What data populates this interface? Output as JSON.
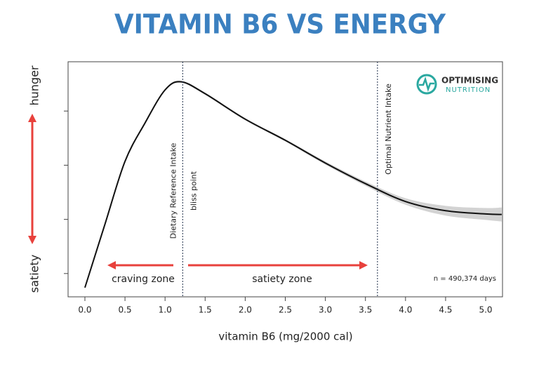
{
  "chart_data": {
    "type": "line",
    "title": "VITAMIN B6 VS ENERGY",
    "x_label": "vitamin B6 (mg/2000 cal)",
    "y_labels": {
      "top": "hunger",
      "bottom": "satiety"
    },
    "x": [
      0,
      0.25,
      0.5,
      0.75,
      1.0,
      1.2,
      1.5,
      2.0,
      2.5,
      3.0,
      3.5,
      4.0,
      4.5,
      5.0,
      5.2
    ],
    "values": [
      0.74,
      1.91,
      3.07,
      3.78,
      4.39,
      4.54,
      4.32,
      3.85,
      3.46,
      3.04,
      2.66,
      2.33,
      2.16,
      2.1,
      2.09
    ],
    "band": {
      "lower": [
        0.72,
        1.89,
        3.05,
        3.76,
        4.37,
        4.52,
        4.3,
        3.83,
        3.44,
        3.01,
        2.62,
        2.27,
        2.07,
        1.99,
        1.96
      ],
      "upper": [
        0.76,
        1.93,
        3.09,
        3.8,
        4.41,
        4.56,
        4.34,
        3.87,
        3.48,
        3.07,
        2.7,
        2.39,
        2.25,
        2.21,
        2.22
      ],
      "color": "#d3d3d3"
    },
    "color": "#111111",
    "xlim": [
      -0.21,
      5.21
    ],
    "ylim": [
      0.57,
      4.91
    ],
    "xticks": [
      {
        "value": 0,
        "label": "0.0"
      },
      0.5,
      {
        "value": 1,
        "label": "1.0"
      },
      1.5,
      {
        "value": 2,
        "label": "2.0"
      },
      2.5,
      {
        "value": 3,
        "label": "3.0"
      },
      3.5,
      {
        "value": 4,
        "label": "4.0"
      },
      4.5,
      {
        "value": 5,
        "label": "5.0"
      }
    ],
    "yticks": [
      1,
      2,
      3,
      4
    ],
    "ytick_labels": false,
    "vlines": [
      {
        "value": 1.22,
        "labels": [
          "Dietary Reference Intake",
          "bliss point"
        ]
      },
      {
        "value": 3.65,
        "labels": [
          "Optimal Nutrient Intake"
        ]
      }
    ],
    "annotations": [
      "craving zone",
      "satiety zone",
      "n = 490,374 days"
    ]
  },
  "logo": {
    "line1": "OPTIMISING",
    "line2": "NUTRITION"
  }
}
